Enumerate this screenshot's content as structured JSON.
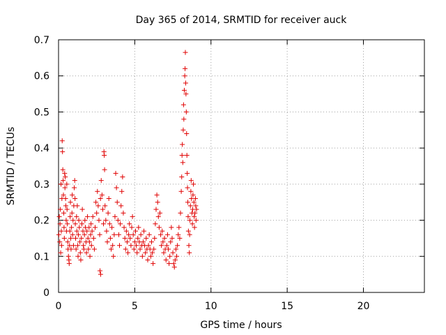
{
  "chart_data": {
    "type": "scatter",
    "title": "Day 365 of 2014, SRMTID for receiver auck",
    "xlabel": "GPS time / hours",
    "ylabel": "SRMTID / TECUs",
    "xlim": [
      0,
      24
    ],
    "ylim": [
      0,
      0.7
    ],
    "xticks": [
      0,
      5,
      10,
      15,
      20
    ],
    "yticks": [
      0,
      0.1,
      0.2,
      0.3,
      0.4,
      0.5,
      0.6,
      0.7
    ],
    "grid": true,
    "marker": "+",
    "color": "#e00000",
    "series": [
      {
        "name": "SRMTID",
        "points": [
          [
            0.02,
            0.16
          ],
          [
            0.05,
            0.21
          ],
          [
            0.08,
            0.14
          ],
          [
            0.1,
            0.19
          ],
          [
            0.12,
            0.23
          ],
          [
            0.14,
            0.11
          ],
          [
            0.16,
            0.3
          ],
          [
            0.18,
            0.17
          ],
          [
            0.2,
            0.13
          ],
          [
            0.22,
            0.26
          ],
          [
            0.24,
            0.42
          ],
          [
            0.26,
            0.39
          ],
          [
            0.28,
            0.34
          ],
          [
            0.3,
            0.31
          ],
          [
            0.32,
            0.27
          ],
          [
            0.34,
            0.22
          ],
          [
            0.36,
            0.18
          ],
          [
            0.38,
            0.15
          ],
          [
            0.4,
            0.33
          ],
          [
            0.42,
            0.29
          ],
          [
            0.44,
            0.32
          ],
          [
            0.46,
            0.26
          ],
          [
            0.48,
            0.24
          ],
          [
            0.5,
            0.2
          ],
          [
            0.52,
            0.17
          ],
          [
            0.54,
            0.3
          ],
          [
            0.56,
            0.23
          ],
          [
            0.58,
            0.19
          ],
          [
            0.6,
            0.14
          ],
          [
            0.62,
            0.12
          ],
          [
            0.65,
            0.1
          ],
          [
            0.68,
            0.09
          ],
          [
            0.7,
            0.08
          ],
          [
            0.72,
            0.13
          ],
          [
            0.74,
            0.17
          ],
          [
            0.76,
            0.21
          ],
          [
            0.78,
            0.25
          ],
          [
            0.8,
            0.15
          ],
          [
            0.82,
            0.12
          ],
          [
            0.85,
            0.18
          ],
          [
            0.88,
            0.22
          ],
          [
            0.9,
            0.27
          ],
          [
            0.92,
            0.16
          ],
          [
            0.95,
            0.2
          ],
          [
            0.98,
            0.13
          ],
          [
            1.0,
            0.24
          ],
          [
            1.03,
            0.29
          ],
          [
            1.06,
            0.31
          ],
          [
            1.08,
            0.26
          ],
          [
            1.1,
            0.19
          ],
          [
            1.12,
            0.15
          ],
          [
            1.15,
            0.12
          ],
          [
            1.18,
            0.21
          ],
          [
            1.2,
            0.17
          ],
          [
            1.23,
            0.24
          ],
          [
            1.26,
            0.13
          ],
          [
            1.28,
            0.1
          ],
          [
            1.3,
            0.16
          ],
          [
            1.33,
            0.2
          ],
          [
            1.36,
            0.18
          ],
          [
            1.4,
            0.14
          ],
          [
            1.43,
            0.11
          ],
          [
            1.46,
            0.09
          ],
          [
            1.5,
            0.15
          ],
          [
            1.53,
            0.19
          ],
          [
            1.56,
            0.23
          ],
          [
            1.6,
            0.17
          ],
          [
            1.63,
            0.13
          ],
          [
            1.66,
            0.12
          ],
          [
            1.7,
            0.16
          ],
          [
            1.73,
            0.2
          ],
          [
            1.76,
            0.18
          ],
          [
            1.8,
            0.14
          ],
          [
            1.83,
            0.11
          ],
          [
            1.86,
            0.17
          ],
          [
            1.9,
            0.21
          ],
          [
            1.93,
            0.15
          ],
          [
            1.96,
            0.12
          ],
          [
            2.0,
            0.18
          ],
          [
            2.03,
            0.14
          ],
          [
            2.06,
            0.1
          ],
          [
            2.1,
            0.16
          ],
          [
            2.13,
            0.19
          ],
          [
            2.16,
            0.13
          ],
          [
            2.2,
            0.17
          ],
          [
            2.25,
            0.21
          ],
          [
            2.3,
            0.15
          ],
          [
            2.35,
            0.12
          ],
          [
            2.4,
            0.18
          ],
          [
            2.45,
            0.25
          ],
          [
            2.5,
            0.22
          ],
          [
            2.55,
            0.28
          ],
          [
            2.6,
            0.24
          ],
          [
            2.65,
            0.2
          ],
          [
            2.7,
            0.16
          ],
          [
            2.75,
            0.26
          ],
          [
            2.8,
            0.31
          ],
          [
            2.85,
            0.27
          ],
          [
            2.9,
            0.23
          ],
          [
            2.95,
            0.19
          ],
          [
            2.72,
            0.06
          ],
          [
            2.76,
            0.05
          ],
          [
            2.98,
            0.39
          ],
          [
            3.0,
            0.38
          ],
          [
            3.02,
            0.34
          ],
          [
            3.05,
            0.24
          ],
          [
            3.1,
            0.2
          ],
          [
            3.15,
            0.17
          ],
          [
            3.2,
            0.14
          ],
          [
            3.25,
            0.22
          ],
          [
            3.3,
            0.26
          ],
          [
            3.35,
            0.19
          ],
          [
            3.4,
            0.15
          ],
          [
            3.45,
            0.12
          ],
          [
            3.5,
            0.18
          ],
          [
            3.55,
            0.13
          ],
          [
            3.6,
            0.1
          ],
          [
            3.65,
            0.16
          ],
          [
            3.7,
            0.21
          ],
          [
            3.75,
            0.33
          ],
          [
            3.8,
            0.29
          ],
          [
            3.85,
            0.25
          ],
          [
            3.9,
            0.2
          ],
          [
            3.95,
            0.16
          ],
          [
            4.0,
            0.13
          ],
          [
            4.05,
            0.19
          ],
          [
            4.1,
            0.24
          ],
          [
            4.15,
            0.28
          ],
          [
            4.2,
            0.32
          ],
          [
            4.25,
            0.22
          ],
          [
            4.3,
            0.18
          ],
          [
            4.35,
            0.15
          ],
          [
            4.4,
            0.12
          ],
          [
            4.45,
            0.17
          ],
          [
            4.5,
            0.14
          ],
          [
            4.55,
            0.11
          ],
          [
            4.6,
            0.16
          ],
          [
            4.65,
            0.19
          ],
          [
            4.7,
            0.15
          ],
          [
            4.75,
            0.13
          ],
          [
            4.8,
            0.18
          ],
          [
            4.85,
            0.21
          ],
          [
            4.9,
            0.16
          ],
          [
            4.95,
            0.12
          ],
          [
            5.0,
            0.14
          ],
          [
            5.05,
            0.17
          ],
          [
            5.1,
            0.13
          ],
          [
            5.15,
            0.11
          ],
          [
            5.2,
            0.15
          ],
          [
            5.25,
            0.18
          ],
          [
            5.3,
            0.14
          ],
          [
            5.35,
            0.12
          ],
          [
            5.4,
            0.16
          ],
          [
            5.45,
            0.13
          ],
          [
            5.5,
            0.1
          ],
          [
            5.55,
            0.14
          ],
          [
            5.6,
            0.17
          ],
          [
            5.65,
            0.13
          ],
          [
            5.7,
            0.11
          ],
          [
            5.75,
            0.15
          ],
          [
            5.8,
            0.12
          ],
          [
            5.85,
            0.09
          ],
          [
            5.9,
            0.13
          ],
          [
            5.95,
            0.16
          ],
          [
            6.0,
            0.12
          ],
          [
            6.05,
            0.1
          ],
          [
            6.1,
            0.14
          ],
          [
            6.15,
            0.11
          ],
          [
            6.2,
            0.08
          ],
          [
            6.25,
            0.12
          ],
          [
            6.3,
            0.15
          ],
          [
            6.35,
            0.19
          ],
          [
            6.4,
            0.23
          ],
          [
            6.45,
            0.27
          ],
          [
            6.5,
            0.25
          ],
          [
            6.55,
            0.21
          ],
          [
            6.6,
            0.18
          ],
          [
            6.65,
            0.22
          ],
          [
            6.7,
            0.16
          ],
          [
            6.75,
            0.13
          ],
          [
            6.8,
            0.17
          ],
          [
            6.85,
            0.14
          ],
          [
            6.9,
            0.11
          ],
          [
            6.95,
            0.15
          ],
          [
            7.0,
            0.12
          ],
          [
            7.05,
            0.09
          ],
          [
            7.1,
            0.13
          ],
          [
            7.15,
            0.16
          ],
          [
            7.2,
            0.12
          ],
          [
            7.25,
            0.08
          ],
          [
            7.3,
            0.1
          ],
          [
            7.35,
            0.14
          ],
          [
            7.4,
            0.18
          ],
          [
            7.45,
            0.15
          ],
          [
            7.5,
            0.11
          ],
          [
            7.55,
            0.08
          ],
          [
            7.6,
            0.07
          ],
          [
            7.65,
            0.09
          ],
          [
            7.7,
            0.12
          ],
          [
            7.75,
            0.1
          ],
          [
            7.8,
            0.13
          ],
          [
            7.85,
            0.16
          ],
          [
            7.9,
            0.18
          ],
          [
            7.95,
            0.15
          ],
          [
            8.0,
            0.22
          ],
          [
            8.05,
            0.28
          ],
          [
            8.08,
            0.32
          ],
          [
            8.1,
            0.38
          ],
          [
            8.12,
            0.41
          ],
          [
            8.15,
            0.36
          ],
          [
            8.18,
            0.45
          ],
          [
            8.2,
            0.52
          ],
          [
            8.22,
            0.48
          ],
          [
            8.25,
            0.56
          ],
          [
            8.28,
            0.6
          ],
          [
            8.3,
            0.62
          ],
          [
            8.32,
            0.665
          ],
          [
            8.34,
            0.58
          ],
          [
            8.36,
            0.55
          ],
          [
            8.38,
            0.5
          ],
          [
            8.4,
            0.44
          ],
          [
            8.42,
            0.38
          ],
          [
            8.44,
            0.33
          ],
          [
            8.46,
            0.29
          ],
          [
            8.48,
            0.25
          ],
          [
            8.5,
            0.21
          ],
          [
            8.52,
            0.17
          ],
          [
            8.55,
            0.13
          ],
          [
            8.58,
            0.11
          ],
          [
            8.6,
            0.16
          ],
          [
            8.62,
            0.2
          ],
          [
            8.65,
            0.24
          ],
          [
            8.68,
            0.28
          ],
          [
            8.7,
            0.31
          ],
          [
            8.72,
            0.26
          ],
          [
            8.75,
            0.22
          ],
          [
            8.78,
            0.19
          ],
          [
            8.8,
            0.23
          ],
          [
            8.82,
            0.27
          ],
          [
            8.85,
            0.3
          ],
          [
            8.88,
            0.25
          ],
          [
            8.9,
            0.21
          ],
          [
            8.92,
            0.18
          ],
          [
            8.95,
            0.22
          ],
          [
            8.98,
            0.26
          ],
          [
            9.0,
            0.24
          ],
          [
            9.02,
            0.2
          ],
          [
            9.05,
            0.23
          ]
        ]
      }
    ]
  }
}
